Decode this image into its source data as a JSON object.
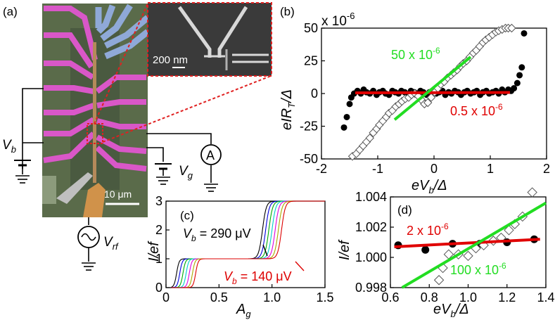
{
  "figure": {
    "panels": {
      "a": {
        "label": "(a)",
        "scalebar_main": "10 μm",
        "scalebar_inset": "200 nm",
        "vb_label": "V",
        "vb_sub": "b",
        "vg_label": "V",
        "vg_sub": "g",
        "vrf_label": "V",
        "vrf_sub": "rf",
        "ammeter": "A",
        "colors": {
          "pink": "#d957c8",
          "blue": "#8fa9d8",
          "green_bg": "#5a6b4a",
          "orange": "#d0924a",
          "gray": "#7d7d7d",
          "red_dash": "#e02020"
        }
      }
    }
  },
  "chart_data": [
    {
      "panel": "b",
      "type": "scatter",
      "label": "(b)",
      "xlabel_main": "eV",
      "xlabel_sub": "b",
      "xlabel_tail": "/Δ",
      "ylabel_main": "eIR",
      "ylabel_sub": "T",
      "ylabel_tail": "/Δ",
      "scale_note": "x 10",
      "scale_exp": "-6",
      "xlim": [
        -2,
        2
      ],
      "ylim": [
        -50,
        50
      ],
      "xticks": [
        "-2",
        "-1",
        "0",
        "1",
        "2"
      ],
      "yticks": [
        "50",
        "25",
        "0",
        "-25",
        "-50"
      ],
      "series": [
        {
          "name": "filled",
          "marker": "circle-filled",
          "points": [
            [
              -1.6,
              -26
            ],
            [
              -1.55,
              -18
            ],
            [
              -1.5,
              -8
            ],
            [
              -1.47,
              -3
            ],
            [
              -1.42,
              0
            ],
            [
              -1.36,
              2
            ],
            [
              -1.3,
              0
            ],
            [
              -1.25,
              3
            ],
            [
              -1.2,
              1
            ],
            [
              -1.14,
              0
            ],
            [
              -1.08,
              2
            ],
            [
              -1.02,
              -1
            ],
            [
              -0.97,
              1
            ],
            [
              -0.91,
              2
            ],
            [
              -0.86,
              0
            ],
            [
              -0.8,
              -1
            ],
            [
              -0.74,
              2
            ],
            [
              -0.69,
              1
            ],
            [
              -0.63,
              0
            ],
            [
              -0.58,
              2
            ],
            [
              -0.52,
              1
            ],
            [
              -0.46,
              -1
            ],
            [
              -0.41,
              2
            ],
            [
              -0.35,
              1
            ],
            [
              -0.3,
              0
            ],
            [
              -0.24,
              2
            ],
            [
              -0.19,
              1
            ],
            [
              -0.13,
              -1
            ],
            [
              -0.08,
              1
            ],
            [
              -0.02,
              2
            ],
            [
              0.04,
              0
            ],
            [
              0.09,
              1
            ],
            [
              0.15,
              2
            ],
            [
              0.2,
              -1
            ],
            [
              0.26,
              1
            ],
            [
              0.31,
              0
            ],
            [
              0.37,
              2
            ],
            [
              0.43,
              1
            ],
            [
              0.48,
              -1
            ],
            [
              0.54,
              1
            ],
            [
              0.59,
              2
            ],
            [
              0.65,
              0
            ],
            [
              0.71,
              1
            ],
            [
              0.76,
              2
            ],
            [
              0.82,
              -1
            ],
            [
              0.87,
              1
            ],
            [
              0.93,
              2
            ],
            [
              0.98,
              0
            ],
            [
              1.04,
              1
            ],
            [
              1.1,
              2
            ],
            [
              1.15,
              0
            ],
            [
              1.21,
              3
            ],
            [
              1.26,
              1
            ],
            [
              1.32,
              3
            ],
            [
              1.37,
              2
            ],
            [
              1.42,
              4
            ],
            [
              1.48,
              8
            ],
            [
              1.52,
              14
            ],
            [
              1.56,
              20
            ],
            [
              1.6,
              46
            ]
          ]
        },
        {
          "name": "open",
          "marker": "diamond-open",
          "points": [
            [
              -1.45,
              -48
            ],
            [
              -1.38,
              -46
            ],
            [
              -1.32,
              -43
            ],
            [
              -1.26,
              -40
            ],
            [
              -1.2,
              -37
            ],
            [
              -1.14,
              -34
            ],
            [
              -1.08,
              -30
            ],
            [
              -1.02,
              -27
            ],
            [
              -0.97,
              -24
            ],
            [
              -0.91,
              -21
            ],
            [
              -0.85,
              -18
            ],
            [
              -0.8,
              -15
            ],
            [
              -0.74,
              -13
            ],
            [
              -0.68,
              -10
            ],
            [
              -0.62,
              -8
            ],
            [
              -0.57,
              -6
            ],
            [
              -0.51,
              -4
            ],
            [
              -0.45,
              -3
            ],
            [
              -0.4,
              -1
            ],
            [
              -0.34,
              0
            ],
            [
              -0.28,
              -2
            ],
            [
              -0.22,
              -5
            ],
            [
              -0.17,
              -8
            ],
            [
              -0.11,
              -7
            ],
            [
              -0.05,
              -3
            ],
            [
              0.01,
              1
            ],
            [
              0.07,
              4
            ],
            [
              0.12,
              7
            ],
            [
              0.18,
              9
            ],
            [
              0.24,
              12
            ],
            [
              0.3,
              14
            ],
            [
              0.35,
              16
            ],
            [
              0.41,
              18
            ],
            [
              0.47,
              21
            ],
            [
              0.52,
              23
            ],
            [
              0.58,
              25
            ],
            [
              0.64,
              28
            ],
            [
              0.7,
              31
            ],
            [
              0.75,
              33
            ],
            [
              0.81,
              36
            ],
            [
              0.87,
              39
            ],
            [
              0.92,
              41
            ],
            [
              0.98,
              43
            ],
            [
              1.04,
              45
            ],
            [
              1.1,
              47
            ],
            [
              1.15,
              48
            ],
            [
              1.21,
              49
            ],
            [
              1.27,
              50
            ],
            [
              1.32,
              50
            ],
            [
              1.38,
              50
            ]
          ]
        }
      ],
      "fits": [
        {
          "name": "red fit",
          "color": "#e00000",
          "x": [
            -1.4,
            1.35
          ],
          "y": [
            0.5,
            0.8
          ],
          "label": "0.5 x 10",
          "label_exp": "-6"
        },
        {
          "name": "green fit",
          "color": "#22dd22",
          "x": [
            -0.7,
            0.65
          ],
          "y": [
            -20,
            28
          ],
          "label": "50 x 10",
          "label_exp": "-6"
        }
      ]
    },
    {
      "panel": "c",
      "type": "line",
      "label": "(c)",
      "xlabel_main": "A",
      "xlabel_sub": "g",
      "ylabel": "I/ef",
      "xlim": [
        0,
        1.5
      ],
      "ylim": [
        0,
        3
      ],
      "xticks": [
        "0",
        "0.5",
        "1.0",
        "1.5"
      ],
      "yticks": [
        "0",
        "1",
        "2",
        "3"
      ],
      "annot_top_main": "V",
      "annot_top_sub": "b",
      "annot_top_tail": " = 290 μV",
      "annot_bottom_main": "V",
      "annot_bottom_sub": "b",
      "annot_bottom_tail": " = 140 μV",
      "series": [
        {
          "name": "290 μV",
          "color": "#000000",
          "step1": 0.1,
          "step2": 0.91
        },
        {
          "name": "s2",
          "color": "#0000dd",
          "step1": 0.13,
          "step2": 0.94
        },
        {
          "name": "s3",
          "color": "#00aa00",
          "step1": 0.16,
          "step2": 0.97
        },
        {
          "name": "s4",
          "color": "#00cccc",
          "step1": 0.19,
          "step2": 1.0
        },
        {
          "name": "s5",
          "color": "#dd00dd",
          "step1": 0.22,
          "step2": 1.03
        },
        {
          "name": "s6",
          "color": "#aaaa00",
          "step1": 0.25,
          "step2": 1.06
        },
        {
          "name": "140 μV",
          "color": "#dd0000",
          "step1": 0.28,
          "step2": 1.09
        }
      ]
    },
    {
      "panel": "d",
      "type": "scatter",
      "label": "(d)",
      "xlabel_main": "eV",
      "xlabel_sub": "b",
      "xlabel_tail": "/Δ",
      "ylabel": "I/ef",
      "xlim": [
        0.6,
        1.4
      ],
      "ylim": [
        0.998,
        1.004
      ],
      "xticks": [
        "0.6",
        "0.8",
        "1.0",
        "1.2",
        "1.4"
      ],
      "yticks": [
        "1.004",
        "1.002",
        "1.000",
        "0.998"
      ],
      "series": [
        {
          "name": "filled",
          "marker": "circle-filled",
          "points": [
            [
              0.64,
              1.0008
            ],
            [
              0.78,
              1.0005
            ],
            [
              0.92,
              1.0009
            ],
            [
              1.06,
              1.0009
            ],
            [
              1.2,
              1.001
            ],
            [
              1.34,
              1.0012
            ]
          ]
        },
        {
          "name": "open",
          "marker": "diamond-open",
          "points": [
            [
              0.85,
              0.9985
            ],
            [
              0.87,
              0.9993
            ],
            [
              0.9,
              1.0002
            ],
            [
              0.95,
              1.0002
            ],
            [
              1.0,
              1.0001
            ],
            [
              1.04,
              1.0006
            ],
            [
              1.08,
              1.0008
            ],
            [
              1.13,
              1.0011
            ],
            [
              1.17,
              1.0013
            ],
            [
              1.21,
              1.0018
            ],
            [
              1.24,
              1.0022
            ],
            [
              1.28,
              1.0027
            ],
            [
              1.33,
              1.0043
            ]
          ]
        }
      ],
      "fits": [
        {
          "name": "red fit",
          "color": "#e00000",
          "x": [
            0.62,
            1.37
          ],
          "y": [
            1.0007,
            1.0012
          ],
          "label": "2 x 10",
          "label_exp": "-6"
        },
        {
          "name": "green fit",
          "color": "#22dd22",
          "x": [
            0.66,
            1.4
          ],
          "y": [
            0.998,
            1.0036
          ],
          "label": "100 x 10",
          "label_exp": "-6"
        }
      ]
    }
  ]
}
